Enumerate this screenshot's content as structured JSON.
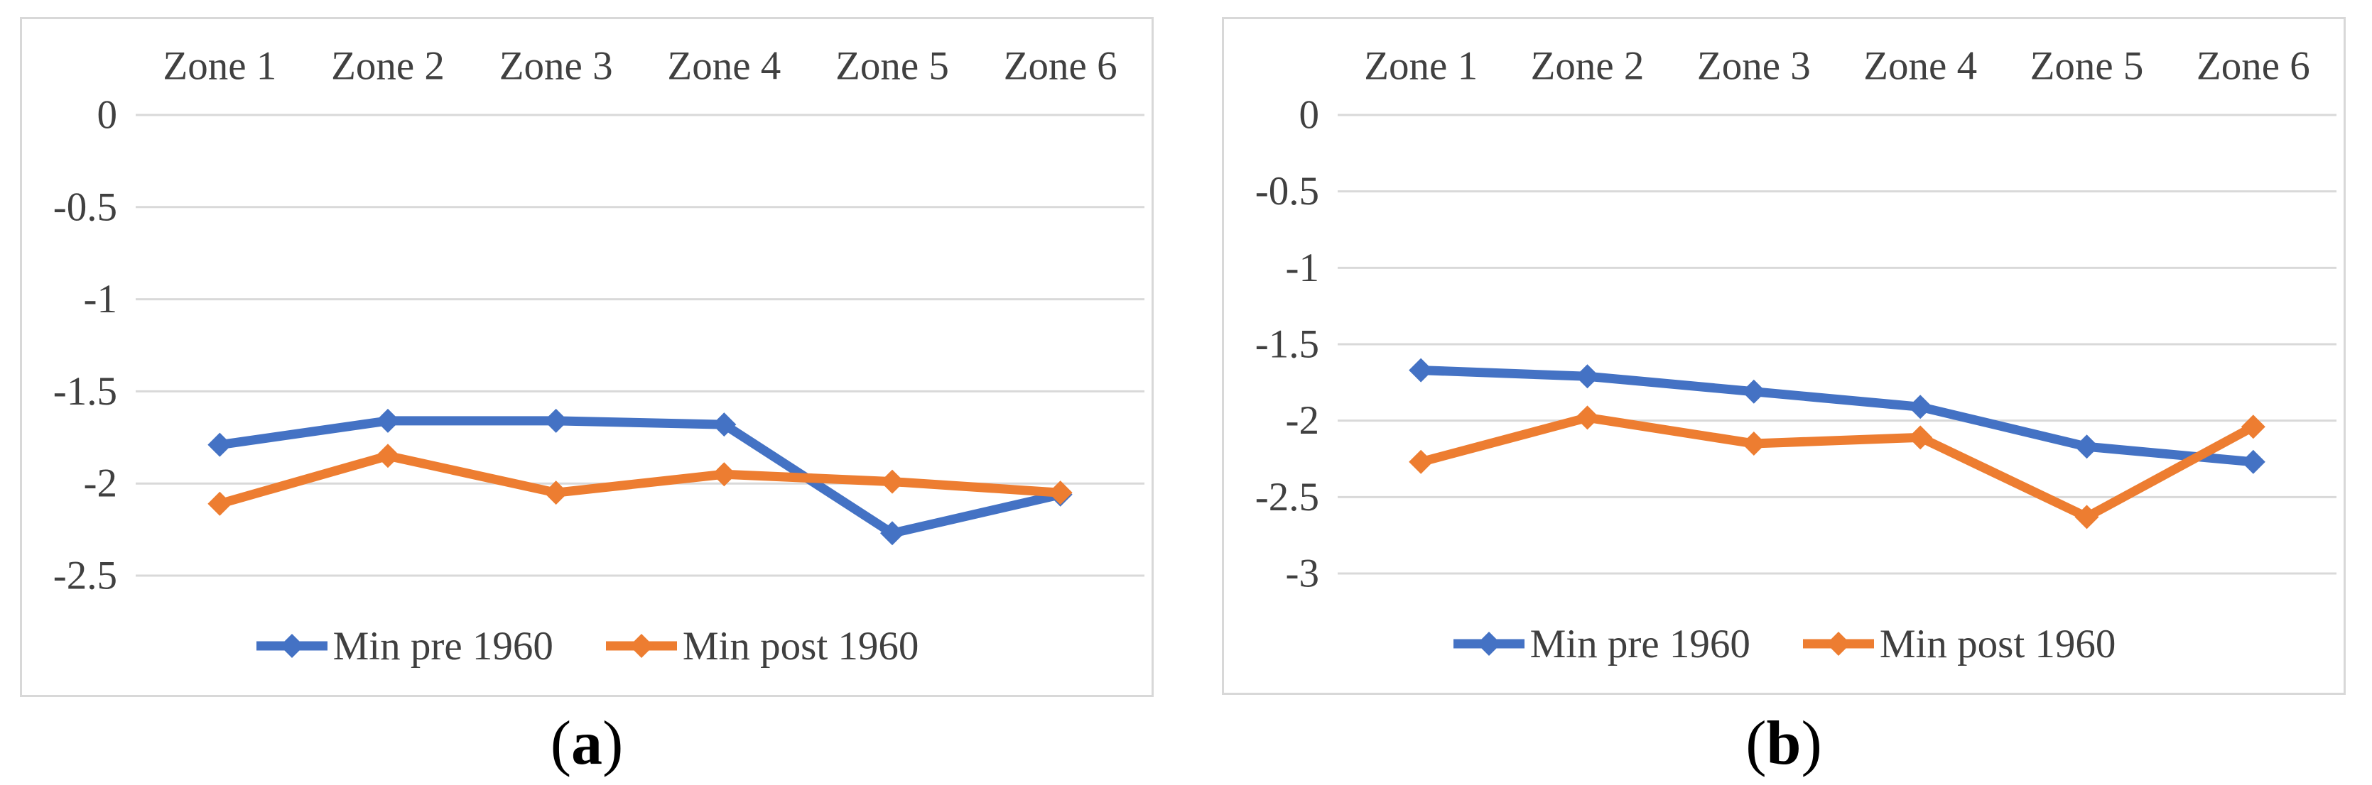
{
  "figure": {
    "background": "#ffffff",
    "panel_border_color": "#d8d8d8",
    "gridline_color": "#d9d9d9",
    "axis_text_color": "#404040",
    "legend_text_color": "#3f3f3f"
  },
  "chart_data": [
    {
      "id": "a",
      "type": "line",
      "title": "",
      "xlabel": "",
      "ylabel": "",
      "categories": [
        "Zone 1",
        "Zone 2",
        "Zone 3",
        "Zone 4",
        "Zone 5",
        "Zone 6"
      ],
      "series": [
        {
          "name": "Min pre 1960",
          "color": "#4472C4",
          "marker": "diamond",
          "values": [
            -1.79,
            -1.66,
            -1.66,
            -1.68,
            -2.27,
            -2.06
          ]
        },
        {
          "name": "Min post 1960",
          "color": "#ED7D31",
          "marker": "diamond",
          "values": [
            -2.11,
            -1.85,
            -2.05,
            -1.95,
            -1.99,
            -2.05
          ]
        }
      ],
      "ylim": [
        0,
        -2.5
      ],
      "yticks": [
        0,
        -0.5,
        -1,
        -1.5,
        -2,
        -2.5
      ],
      "ytick_labels": [
        "0",
        "-0.5",
        "-1",
        "-1.5",
        "-2",
        "-2.5"
      ],
      "grid": true,
      "category_labels_position": "top",
      "legend_position": "bottom",
      "caption": {
        "open": "(",
        "letter": "a",
        "close": ")"
      }
    },
    {
      "id": "b",
      "type": "line",
      "title": "",
      "xlabel": "",
      "ylabel": "",
      "categories": [
        "Zone 1",
        "Zone 2",
        "Zone 3",
        "Zone 4",
        "Zone 5",
        "Zone 6"
      ],
      "series": [
        {
          "name": "Min pre 1960",
          "color": "#4472C4",
          "marker": "diamond",
          "values": [
            -1.67,
            -1.71,
            -1.81,
            -1.91,
            -2.17,
            -2.27
          ]
        },
        {
          "name": "Min post 1960",
          "color": "#ED7D31",
          "marker": "diamond",
          "values": [
            -2.27,
            -1.98,
            -2.15,
            -2.11,
            -2.63,
            -2.04
          ]
        }
      ],
      "ylim": [
        0,
        -3
      ],
      "yticks": [
        0,
        -0.5,
        -1,
        -1.5,
        -2,
        -2.5,
        -3
      ],
      "ytick_labels": [
        "0",
        "-0.5",
        "-1",
        "-1.5",
        "-2",
        "-2.5",
        "-3"
      ],
      "grid": true,
      "category_labels_position": "top",
      "legend_position": "bottom",
      "caption": {
        "open": "(",
        "letter": "b",
        "close": ")"
      }
    }
  ]
}
